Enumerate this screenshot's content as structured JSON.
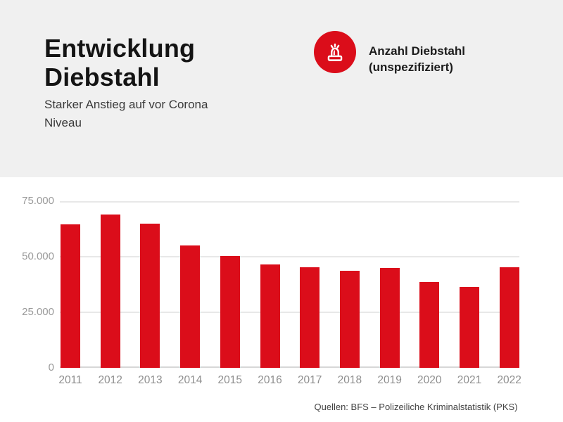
{
  "header": {
    "title": "Entwicklung Diebstahl",
    "subtitle": "Starker Anstieg auf vor Corona Niveau"
  },
  "legend": {
    "icon": "siren-icon",
    "label": "Anzahl Diebstahl (unspezifiziert)",
    "badge_color": "#DB0D1A"
  },
  "footer": {
    "source": "Quellen: BFS – Polizeiliche Kriminalstatistik (PKS)"
  },
  "colors": {
    "accent_red": "#DB0D1A",
    "header_background": "#F0F0F0",
    "grid_line": "#E8E8E8",
    "axis_line": "#D7D7D7",
    "y_tick_label": "#9A9A9A",
    "x_tick_label": "#8E8E8E",
    "title_text": "#141414",
    "subtitle_text": "#3A3A3A"
  },
  "chart_data": {
    "type": "bar",
    "title": "Entwicklung Diebstahl",
    "series_name": "Anzahl Diebstahl (unspezifiziert)",
    "categories": [
      "2011",
      "2012",
      "2013",
      "2014",
      "2015",
      "2016",
      "2017",
      "2018",
      "2019",
      "2020",
      "2021",
      "2022"
    ],
    "values": [
      64500,
      69000,
      65000,
      55000,
      50300,
      46500,
      45200,
      43700,
      45000,
      38600,
      36500,
      45300
    ],
    "bar_color": "#DB0D1A",
    "xlabel": "",
    "ylabel": "",
    "ylim": [
      0,
      75000
    ],
    "yticks": [
      {
        "label": "75.000",
        "value": 75000
      },
      {
        "label": "50.000",
        "value": 50000
      },
      {
        "label": "25.000",
        "value": 25000
      },
      {
        "label": "0",
        "value": 0
      }
    ],
    "grid": true,
    "legend_position": "top-right"
  }
}
